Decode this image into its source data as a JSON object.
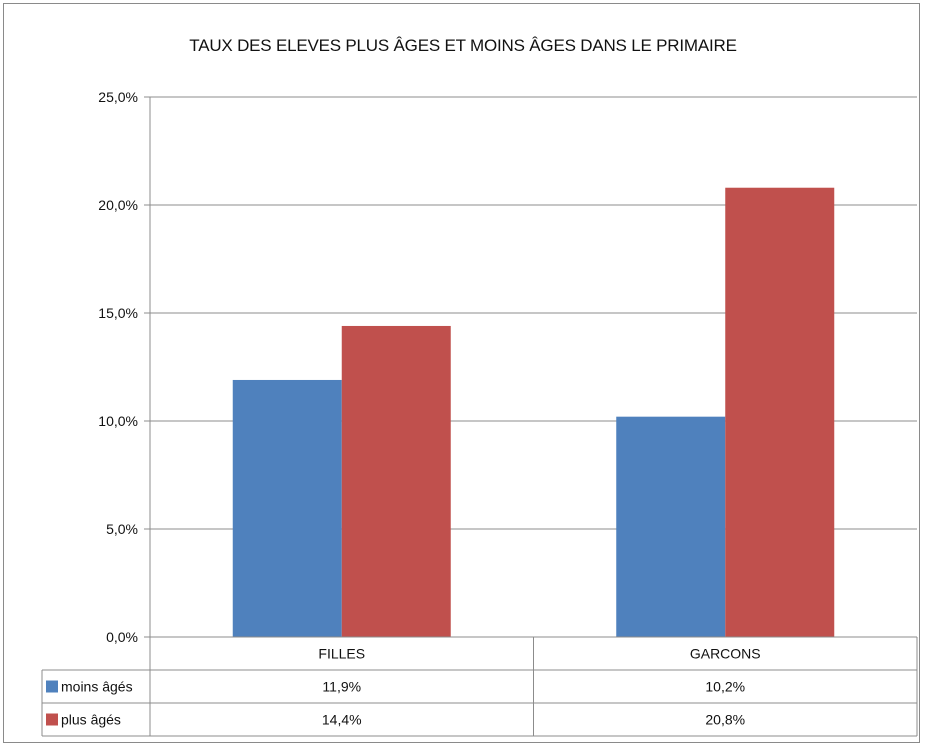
{
  "chart_data": {
    "type": "bar",
    "title": "TAUX DES ELEVES PLUS ÂGES ET MOINS ÂGES DANS LE PRIMAIRE",
    "categories": [
      "FILLES",
      "GARCONS"
    ],
    "series": [
      {
        "name": "moins âgés",
        "values": [
          11.9,
          10.2
        ],
        "labels": [
          "11,9%",
          "10,2%"
        ],
        "color": "#4f81bd"
      },
      {
        "name": "plus âgés",
        "values": [
          14.4,
          20.8
        ],
        "labels": [
          "14,4%",
          "20,8%"
        ],
        "color": "#c0504d"
      }
    ],
    "ylim": [
      0,
      25
    ],
    "yticks": [
      0,
      5,
      10,
      15,
      20,
      25
    ],
    "ytick_labels": [
      "0,0%",
      "5,0%",
      "10,0%",
      "15,0%",
      "20,0%",
      "25,0%"
    ],
    "grid": true,
    "legend": "data-table"
  }
}
